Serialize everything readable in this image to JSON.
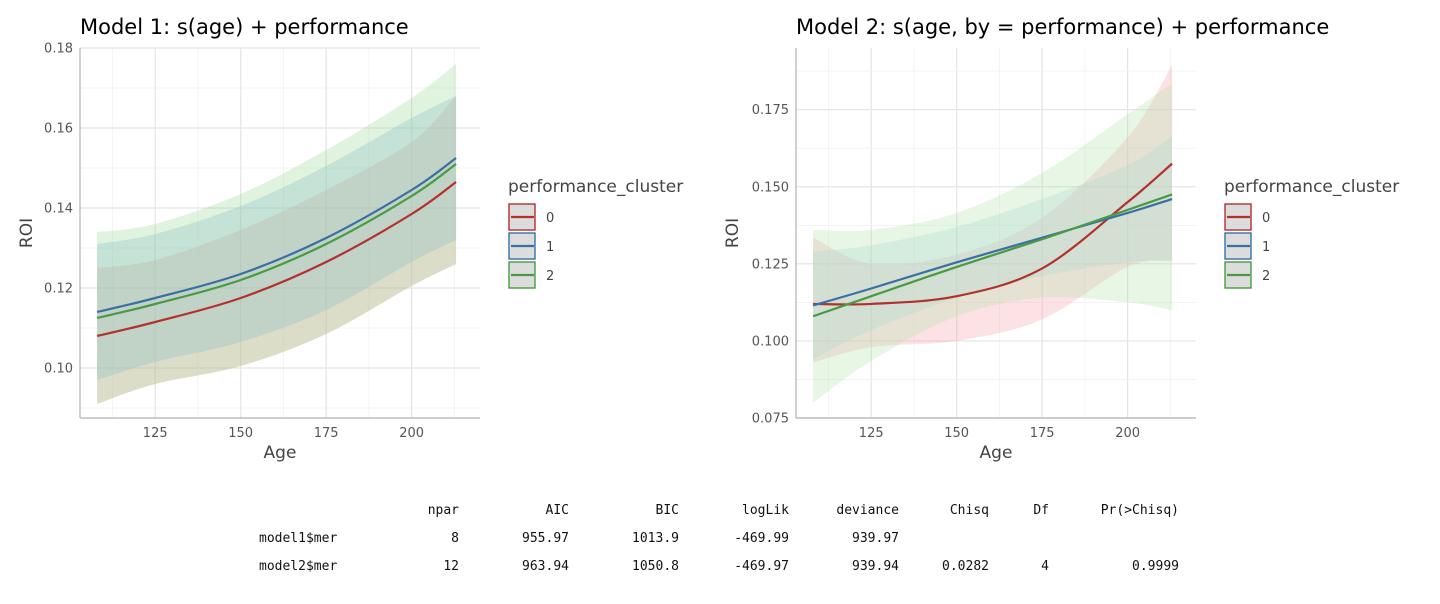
{
  "chart_data": [
    {
      "type": "line",
      "title": "Model 1: s(age) + performance",
      "xlabel": "Age",
      "ylabel": "ROI",
      "xlim": [
        103,
        220
      ],
      "ylim": [
        0.0875,
        0.18
      ],
      "xticks": [
        "125",
        "150",
        "175",
        "200"
      ],
      "yticks": [
        "0.10",
        "0.12",
        "0.14",
        "0.16",
        "0.18"
      ],
      "grid": true,
      "legend": {
        "title": "performance_cluster",
        "position": "right",
        "labels": [
          "0",
          "1",
          "2"
        ]
      },
      "x": [
        108,
        125,
        150,
        175,
        200,
        213
      ],
      "series": [
        {
          "name": "0",
          "color": "#b2312e",
          "fill": "#ee9a9a",
          "values": [
            0.108,
            0.1115,
            0.1175,
            0.1265,
            0.1385,
            0.1465
          ],
          "lower": [
            0.091,
            0.096,
            0.1005,
            0.1085,
            0.1205,
            0.126
          ],
          "upper": [
            0.125,
            0.127,
            0.1345,
            0.1445,
            0.1565,
            0.168
          ]
        },
        {
          "name": "1",
          "color": "#3a6fa4",
          "fill": "#7fb0da",
          "values": [
            0.114,
            0.1175,
            0.1235,
            0.1325,
            0.1445,
            0.1525
          ],
          "lower": [
            0.097,
            0.1015,
            0.1065,
            0.1145,
            0.1265,
            0.132
          ],
          "upper": [
            0.131,
            0.1335,
            0.1405,
            0.1505,
            0.1625,
            0.168
          ]
        },
        {
          "name": "2",
          "color": "#4a9a43",
          "fill": "#9fd998",
          "values": [
            0.1125,
            0.116,
            0.122,
            0.131,
            0.143,
            0.151
          ],
          "lower": [
            0.091,
            0.096,
            0.1005,
            0.1085,
            0.1205,
            0.126
          ],
          "upper": [
            0.134,
            0.136,
            0.1435,
            0.1545,
            0.1675,
            0.176
          ]
        }
      ]
    },
    {
      "type": "line",
      "title": "Model 2: s(age, by = performance) + performance",
      "xlabel": "Age",
      "ylabel": "ROI",
      "xlim": [
        103,
        220
      ],
      "ylim": [
        0.075,
        0.195
      ],
      "xticks": [
        "125",
        "150",
        "175",
        "200"
      ],
      "yticks": [
        "0.075",
        "0.100",
        "0.125",
        "0.150",
        "0.175"
      ],
      "grid": true,
      "legend": {
        "title": "performance_cluster",
        "position": "right",
        "labels": [
          "0",
          "1",
          "2"
        ]
      },
      "x": [
        108,
        125,
        150,
        175,
        200,
        213
      ],
      "series": [
        {
          "name": "0",
          "color": "#b2312e",
          "fill": "#f5a6ad",
          "values": [
            0.112,
            0.112,
            0.1145,
            0.1235,
            0.145,
            0.1575
          ],
          "lower": [
            0.093,
            0.098,
            0.1,
            0.107,
            0.124,
            0.126
          ],
          "upper": [
            0.1335,
            0.125,
            0.128,
            0.14,
            0.166,
            0.1895
          ]
        },
        {
          "name": "1",
          "color": "#3a6fa4",
          "fill": "#a9d8e0",
          "values": [
            0.1115,
            0.117,
            0.1255,
            0.1335,
            0.1415,
            0.146
          ],
          "lower": [
            0.094,
            0.1035,
            0.114,
            0.121,
            0.1255,
            0.126
          ],
          "upper": [
            0.129,
            0.131,
            0.137,
            0.146,
            0.157,
            0.1665
          ]
        },
        {
          "name": "2",
          "color": "#4a9a43",
          "fill": "#b4e2ae",
          "values": [
            0.108,
            0.1145,
            0.124,
            0.133,
            0.1425,
            0.1475
          ],
          "lower": [
            0.08,
            0.0935,
            0.108,
            0.114,
            0.1125,
            0.11
          ],
          "upper": [
            0.136,
            0.136,
            0.1415,
            0.1545,
            0.1735,
            0.1835
          ]
        }
      ]
    }
  ],
  "table": {
    "headers": [
      "npar",
      "AIC",
      "BIC",
      "logLik",
      "deviance",
      "Chisq",
      "Df",
      "Pr(>Chisq)"
    ],
    "rows": [
      {
        "name": "model1$mer",
        "cells": [
          "8",
          "955.97",
          "1013.9",
          "-469.99",
          "939.97",
          "",
          "",
          ""
        ]
      },
      {
        "name": "model2$mer",
        "cells": [
          "12",
          "963.94",
          "1050.8",
          "-469.97",
          "939.94",
          "0.0282",
          "4",
          "0.9999"
        ]
      }
    ]
  }
}
